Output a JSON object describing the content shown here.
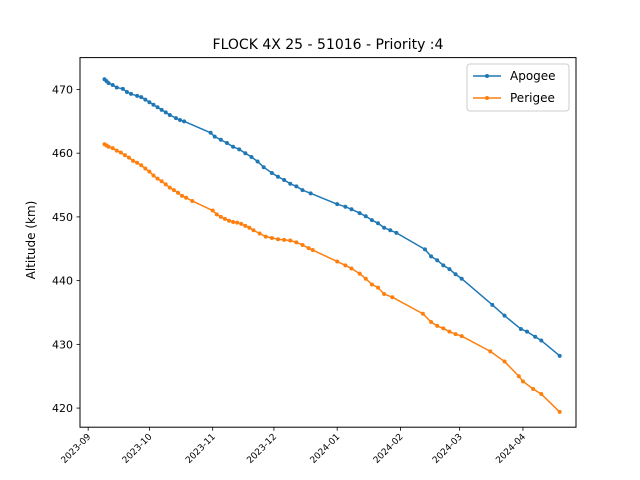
{
  "chart_data": {
    "type": "line",
    "title": "FLOCK 4X 25 - 51016 - Priority :4",
    "xlabel": "",
    "ylabel": "Altitude (km)",
    "xlim": [
      "2023-08-28",
      "2024-04-27"
    ],
    "ylim": [
      417,
      475
    ],
    "x_ticks": [
      "2023-09",
      "2023-10",
      "2023-11",
      "2023-12",
      "2024-01",
      "2024-02",
      "2024-03",
      "2024-04"
    ],
    "y_ticks": [
      420,
      430,
      440,
      450,
      460,
      470
    ],
    "grid": false,
    "legend": {
      "placement": "top-right"
    },
    "series": [
      {
        "name": "Apogee",
        "color": "#1f77b4",
        "points": [
          [
            "2023-09-09",
            471.6
          ],
          [
            "2023-09-10",
            471.3
          ],
          [
            "2023-09-11",
            471.0
          ],
          [
            "2023-09-13",
            470.7
          ],
          [
            "2023-09-15",
            470.3
          ],
          [
            "2023-09-18",
            470.1
          ],
          [
            "2023-09-20",
            469.6
          ],
          [
            "2023-09-22",
            469.3
          ],
          [
            "2023-09-25",
            469.0
          ],
          [
            "2023-09-27",
            468.8
          ],
          [
            "2023-09-29",
            468.4
          ],
          [
            "2023-10-01",
            468.0
          ],
          [
            "2023-10-03",
            467.6
          ],
          [
            "2023-10-05",
            467.2
          ],
          [
            "2023-10-07",
            466.8
          ],
          [
            "2023-10-09",
            466.4
          ],
          [
            "2023-10-11",
            466.0
          ],
          [
            "2023-10-14",
            465.5
          ],
          [
            "2023-10-16",
            465.2
          ],
          [
            "2023-10-18",
            465.0
          ],
          [
            "2023-10-31",
            463.2
          ],
          [
            "2023-11-02",
            462.6
          ],
          [
            "2023-11-05",
            462.1
          ],
          [
            "2023-11-08",
            461.6
          ],
          [
            "2023-11-11",
            461.0
          ],
          [
            "2023-11-14",
            460.6
          ],
          [
            "2023-11-17",
            460.0
          ],
          [
            "2023-11-20",
            459.4
          ],
          [
            "2023-11-23",
            458.7
          ],
          [
            "2023-11-26",
            457.8
          ],
          [
            "2023-11-30",
            456.9
          ],
          [
            "2023-12-03",
            456.3
          ],
          [
            "2023-12-06",
            455.8
          ],
          [
            "2023-12-09",
            455.2
          ],
          [
            "2023-12-12",
            454.8
          ],
          [
            "2023-12-15",
            454.2
          ],
          [
            "2023-12-19",
            453.7
          ],
          [
            "2024-01-01",
            452.0
          ],
          [
            "2024-01-05",
            451.6
          ],
          [
            "2024-01-08",
            451.2
          ],
          [
            "2024-01-12",
            450.6
          ],
          [
            "2024-01-15",
            450.1
          ],
          [
            "2024-01-18",
            449.5
          ],
          [
            "2024-01-21",
            449.0
          ],
          [
            "2024-01-24",
            448.3
          ],
          [
            "2024-01-27",
            447.9
          ],
          [
            "2024-01-30",
            447.5
          ],
          [
            "2024-02-13",
            444.9
          ],
          [
            "2024-02-16",
            443.8
          ],
          [
            "2024-02-19",
            443.2
          ],
          [
            "2024-02-22",
            442.4
          ],
          [
            "2024-02-25",
            441.8
          ],
          [
            "2024-02-28",
            441.0
          ],
          [
            "2024-03-02",
            440.3
          ],
          [
            "2024-03-17",
            436.2
          ],
          [
            "2024-03-23",
            434.5
          ],
          [
            "2024-03-31",
            432.4
          ],
          [
            "2024-04-03",
            432.0
          ],
          [
            "2024-04-07",
            431.2
          ],
          [
            "2024-04-10",
            430.6
          ],
          [
            "2024-04-19",
            428.2
          ]
        ]
      },
      {
        "name": "Perigee",
        "color": "#ff7f0e",
        "points": [
          [
            "2023-09-09",
            461.4
          ],
          [
            "2023-09-10",
            461.2
          ],
          [
            "2023-09-11",
            461.0
          ],
          [
            "2023-09-13",
            460.8
          ],
          [
            "2023-09-15",
            460.4
          ],
          [
            "2023-09-17",
            460.1
          ],
          [
            "2023-09-19",
            459.7
          ],
          [
            "2023-09-21",
            459.3
          ],
          [
            "2023-09-23",
            458.8
          ],
          [
            "2023-09-25",
            458.5
          ],
          [
            "2023-09-27",
            458.1
          ],
          [
            "2023-09-29",
            457.6
          ],
          [
            "2023-10-01",
            457.1
          ],
          [
            "2023-10-03",
            456.5
          ],
          [
            "2023-10-05",
            456.0
          ],
          [
            "2023-10-07",
            455.6
          ],
          [
            "2023-10-09",
            455.1
          ],
          [
            "2023-10-11",
            454.6
          ],
          [
            "2023-10-13",
            454.2
          ],
          [
            "2023-10-15",
            453.8
          ],
          [
            "2023-10-17",
            453.3
          ],
          [
            "2023-10-19",
            453.0
          ],
          [
            "2023-10-22",
            452.5
          ],
          [
            "2023-11-01",
            451.0
          ],
          [
            "2023-11-03",
            450.4
          ],
          [
            "2023-11-05",
            450.0
          ],
          [
            "2023-11-07",
            449.7
          ],
          [
            "2023-11-09",
            449.4
          ],
          [
            "2023-11-11",
            449.2
          ],
          [
            "2023-11-13",
            449.1
          ],
          [
            "2023-11-15",
            448.9
          ],
          [
            "2023-11-17",
            448.6
          ],
          [
            "2023-11-19",
            448.3
          ],
          [
            "2023-11-21",
            447.9
          ],
          [
            "2023-11-24",
            447.4
          ],
          [
            "2023-11-27",
            446.9
          ],
          [
            "2023-11-30",
            446.7
          ],
          [
            "2023-12-03",
            446.5
          ],
          [
            "2023-12-06",
            446.4
          ],
          [
            "2023-12-09",
            446.3
          ],
          [
            "2023-12-12",
            446.0
          ],
          [
            "2023-12-15",
            445.6
          ],
          [
            "2023-12-18",
            445.1
          ],
          [
            "2023-12-20",
            444.8
          ],
          [
            "2024-01-01",
            443.0
          ],
          [
            "2024-01-05",
            442.4
          ],
          [
            "2024-01-08",
            441.9
          ],
          [
            "2024-01-12",
            441.1
          ],
          [
            "2024-01-15",
            440.3
          ],
          [
            "2024-01-18",
            439.4
          ],
          [
            "2024-01-21",
            438.9
          ],
          [
            "2024-01-24",
            437.9
          ],
          [
            "2024-01-28",
            437.4
          ],
          [
            "2024-02-12",
            434.8
          ],
          [
            "2024-02-16",
            433.5
          ],
          [
            "2024-02-19",
            432.9
          ],
          [
            "2024-02-22",
            432.5
          ],
          [
            "2024-02-25",
            432.0
          ],
          [
            "2024-02-28",
            431.6
          ],
          [
            "2024-03-02",
            431.3
          ],
          [
            "2024-03-16",
            428.9
          ],
          [
            "2024-03-23",
            427.3
          ],
          [
            "2024-03-30",
            425.0
          ],
          [
            "2024-04-01",
            424.2
          ],
          [
            "2024-04-06",
            423.0
          ],
          [
            "2024-04-10",
            422.2
          ],
          [
            "2024-04-19",
            419.4
          ]
        ]
      }
    ]
  }
}
